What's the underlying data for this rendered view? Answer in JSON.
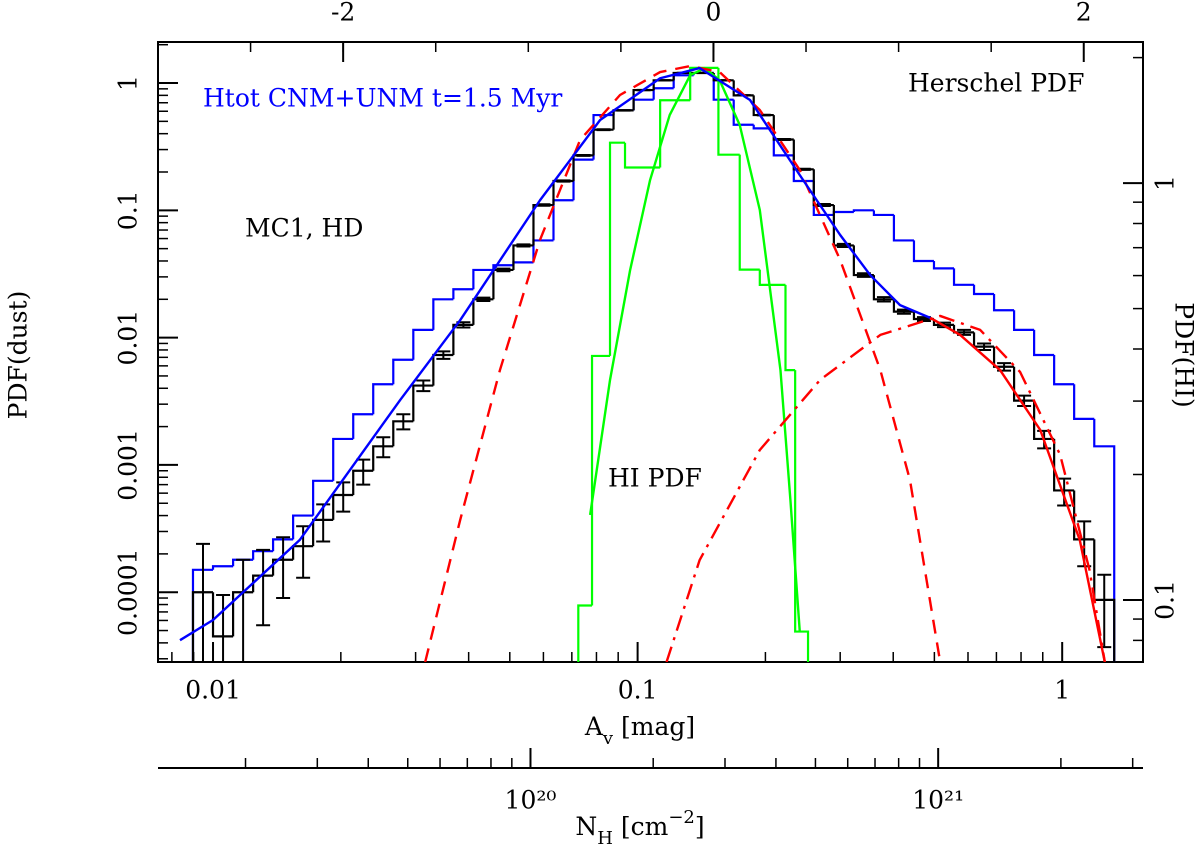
{
  "chart_data": {
    "type": "histogram",
    "xlabel": [
      "A",
      "v",
      " [mag]"
    ],
    "ylabel": "PDF(dust)",
    "y2label": "PDF(HI)",
    "x3label": [
      "N",
      "H",
      " [cm",
      "−2",
      "]"
    ],
    "xscale": "log",
    "yscale": "log",
    "y2scale": "log",
    "x3scale": "log",
    "xlim": [
      0.00742,
      1.55
    ],
    "xticks": [
      0.01,
      0.1,
      1
    ],
    "x2lim": [
      -3.0,
      2.32
    ],
    "x2ticks": [
      -2,
      0,
      2
    ],
    "ylim": [
      2.83e-05,
      2.1
    ],
    "yticks": [
      0.0001,
      0.001,
      0.01,
      0.1,
      1
    ],
    "y2lim": [
      0.071,
      2.18
    ],
    "y2ticks": [
      0.1,
      1
    ],
    "x3lim": [
      1.22e+19,
      3.18e+21
    ],
    "x3ticks": [
      {
        "value": 1e+20,
        "label": "10²⁰"
      },
      {
        "value": 1e+21,
        "label": "10²¹"
      }
    ],
    "annotations": [
      {
        "text": "Htot CNM+UNM t=1.5 Myr",
        "color": "#0000ff"
      },
      {
        "text": "Herschel PDF",
        "color": "#000000"
      },
      {
        "text": "MC1, HD",
        "color": "#000000"
      },
      {
        "text": "HI PDF",
        "color": "#000000"
      }
    ],
    "series": [
      {
        "type": "step",
        "color": "#0000ff",
        "bins": [
          0.00897,
          0.01,
          0.01115,
          0.01243,
          0.01385,
          0.01544,
          0.01721,
          0.01919,
          0.02139,
          0.02384,
          0.02658,
          0.02963,
          0.03303,
          0.03682,
          0.04104,
          0.04575,
          0.051,
          0.05685,
          0.06337,
          0.07064,
          0.07874,
          0.08777,
          0.09784,
          0.1091,
          0.1216,
          0.1355,
          0.1511,
          0.1684,
          0.1877,
          0.2093,
          0.2333,
          0.26,
          0.2899,
          0.3231,
          0.3602,
          0.4015,
          0.4476,
          0.4989,
          0.5562,
          0.62,
          0.6911,
          0.7704,
          0.8588,
          0.9573,
          1.067,
          1.19,
          1.326
        ],
        "values": [
          0.00015,
          0.00016,
          0.00018,
          0.00021,
          0.00026,
          0.0004,
          0.00075,
          0.0016,
          0.0025,
          0.0043,
          0.0067,
          0.0115,
          0.02,
          0.024,
          0.034,
          0.037,
          0.039,
          0.058,
          0.12,
          0.25,
          0.56,
          0.61,
          0.74,
          0.91,
          1.15,
          1.2,
          0.74,
          0.47,
          0.44,
          0.27,
          0.17,
          0.092,
          0.097,
          0.1,
          0.092,
          0.058,
          0.04,
          0.035,
          0.026,
          0.022,
          0.0164,
          0.0115,
          0.0073,
          0.0043,
          0.0023,
          0.0014
        ]
      },
      {
        "type": "step",
        "color": "#000000",
        "bins": [
          0.00897,
          0.01,
          0.01115,
          0.01243,
          0.01385,
          0.01544,
          0.01721,
          0.01919,
          0.02139,
          0.02384,
          0.02658,
          0.02963,
          0.03303,
          0.03682,
          0.04104,
          0.04575,
          0.051,
          0.05685,
          0.06337,
          0.07064,
          0.07874,
          0.08777,
          0.09784,
          0.1091,
          0.1216,
          0.1355,
          0.1511,
          0.1684,
          0.1877,
          0.2093,
          0.2333,
          0.26,
          0.2899,
          0.3231,
          0.3602,
          0.4015,
          0.4476,
          0.4989,
          0.5562,
          0.62,
          0.6911,
          0.7704,
          0.8588,
          0.9573,
          1.067,
          1.19,
          1.326
        ],
        "values": [
          0.0001,
          4.5e-05,
          0.0001,
          0.000135,
          0.00018,
          0.00023,
          0.00037,
          0.00058,
          0.0009,
          0.0014,
          0.0022,
          0.0042,
          0.0073,
          0.0126,
          0.02,
          0.034,
          0.053,
          0.11,
          0.17,
          0.27,
          0.43,
          0.61,
          0.88,
          1.05,
          1.2,
          1.2,
          1.05,
          0.8,
          0.56,
          0.36,
          0.21,
          0.11,
          0.053,
          0.031,
          0.02,
          0.016,
          0.014,
          0.0126,
          0.011,
          0.0085,
          0.0059,
          0.0032,
          0.0016,
          0.00063,
          0.00026,
          8.7e-05
        ],
        "errors": [
          0.00014,
          5e-05,
          8e-05,
          8e-05,
          9e-05,
          0.0001,
          0.00012,
          0.00015,
          0.0002,
          0.00025,
          0.0003,
          0.0004,
          0.0005,
          0.0006,
          0.0006,
          0.0008,
          0.001,
          0.0015,
          0.002,
          0.002,
          0.003,
          0.003,
          0.003,
          0.003,
          0.003,
          0.003,
          0.003,
          0.003,
          0.003,
          0.003,
          0.002,
          0.002,
          0.0015,
          0.001,
          0.0008,
          0.0006,
          0.0005,
          0.0005,
          0.0005,
          0.0005,
          0.0004,
          0.0003,
          0.00025,
          0.00015,
          0.0001,
          5e-05
        ]
      },
      {
        "type": "step",
        "color": "#00ff00",
        "axis": "y2",
        "bins": [
          0.0725,
          0.0781,
          0.0861,
          0.0934,
          0.113,
          0.133,
          0.155,
          0.174,
          0.194,
          0.223,
          0.235,
          0.252
        ],
        "values": [
          0.097,
          0.385,
          1.25,
          1.09,
          1.58,
          1.89,
          1.17,
          0.62,
          0.57,
          0.356,
          0.084
        ]
      },
      {
        "type": "line",
        "color": "#00ff00",
        "axis": "y2",
        "x": [
          0.0773,
          0.0861,
          0.096,
          0.107,
          0.119,
          0.133,
          0.144,
          0.156,
          0.174,
          0.194,
          0.217,
          0.229,
          0.241
        ],
        "values": [
          0.16,
          0.337,
          0.618,
          1.017,
          1.456,
          1.815,
          1.887,
          1.766,
          1.378,
          0.862,
          0.356,
          0.174,
          0.0838
        ]
      },
      {
        "type": "line",
        "color": "#ff0000",
        "dash": "dashed",
        "x": [
          0.0316,
          0.0382,
          0.0474,
          0.0589,
          0.0732,
          0.0909,
          0.113,
          0.133,
          0.156,
          0.194,
          0.241,
          0.3,
          0.373,
          0.438,
          0.516
        ],
        "values": [
          2.83e-05,
          0.000369,
          0.00556,
          0.0585,
          0.357,
          0.805,
          1.22,
          1.36,
          1.22,
          0.614,
          0.207,
          0.0407,
          0.00556,
          0.00076,
          2.83e-05
        ]
      },
      {
        "type": "line",
        "color": "#ff0000",
        "dash": "dashdot",
        "x": [
          0.117,
          0.14,
          0.194,
          0.269,
          0.373,
          0.516,
          0.641,
          0.796,
          0.989,
          1.16,
          1.26
        ],
        "values": [
          2.83e-05,
          0.000179,
          0.00131,
          0.00465,
          0.0105,
          0.0148,
          0.0115,
          0.00537,
          0.0012,
          0.000149,
          2.83e-05
        ]
      },
      {
        "type": "line",
        "color": "#0000ff",
        "x": [
          0.00836,
          0.01,
          0.016,
          0.0276,
          0.0382,
          0.0589,
          0.0816,
          0.113,
          0.14,
          0.184,
          0.241,
          0.3,
          0.353,
          0.415,
          0.489
        ],
        "values": [
          4.2e-05,
          6.05e-05,
          0.000257,
          0.00324,
          0.0137,
          0.12,
          0.512,
          1.09,
          1.31,
          0.735,
          0.189,
          0.064,
          0.031,
          0.018,
          0.0143
        ]
      },
      {
        "type": "line",
        "color": "#ff0000",
        "x": [
          0.489,
          0.575,
          0.714,
          0.888,
          1.1,
          1.26
        ],
        "values": [
          0.0143,
          0.0105,
          0.00556,
          0.00188,
          0.000257,
          2.83e-05
        ]
      }
    ]
  }
}
